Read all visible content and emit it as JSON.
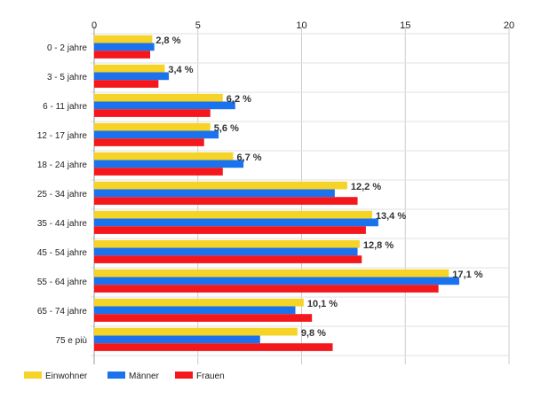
{
  "chart_data": {
    "type": "bar",
    "orientation": "horizontal",
    "title": "",
    "xlabel": "",
    "ylabel": "",
    "xlim": [
      0,
      20
    ],
    "xticks": [
      0,
      5,
      10,
      15,
      20
    ],
    "x_axis_position": "top",
    "grid": true,
    "legend_position": "bottom-left",
    "categories": [
      "0 - 2 jahre",
      "3 - 5 jahre",
      "6 - 11 jahre",
      "12 - 17 jahre",
      "18 - 24 jahre",
      "25 - 34 jahre",
      "35 - 44 jahre",
      "45 - 54 jahre",
      "55 - 64 jahre",
      "65 - 74 jahre",
      "75 e più"
    ],
    "series": [
      {
        "name": "Einwohner",
        "color": "#f5d327",
        "values": [
          2.8,
          3.4,
          6.2,
          5.6,
          6.7,
          12.2,
          13.4,
          12.8,
          17.1,
          10.1,
          9.8
        ]
      },
      {
        "name": "Männer",
        "color": "#1a72ee",
        "values": [
          2.9,
          3.6,
          6.8,
          6.0,
          7.2,
          11.6,
          13.7,
          12.7,
          17.6,
          9.7,
          8.0
        ]
      },
      {
        "name": "Frauen",
        "color": "#f4171c",
        "values": [
          2.7,
          3.1,
          5.6,
          5.3,
          6.2,
          12.7,
          13.1,
          12.9,
          16.6,
          10.5,
          11.5
        ]
      }
    ],
    "data_labels": [
      "2,8 %",
      "3,4 %",
      "6,2 %",
      "5,6 %",
      "6,7 %",
      "12,2 %",
      "13,4 %",
      "12,8 %",
      "17,1 %",
      "10,1 %",
      "9,8 %"
    ]
  }
}
